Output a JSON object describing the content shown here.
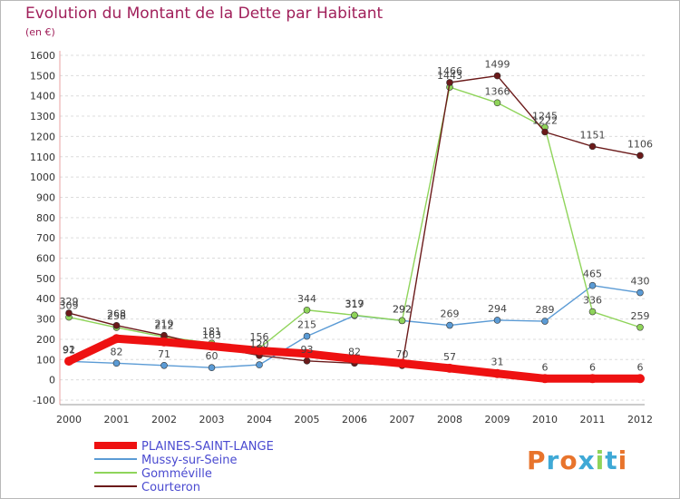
{
  "chart_data": {
    "type": "line",
    "title": "Evolution du Montant de la Dette par Habitant",
    "subtitle": "(en €)",
    "xlabel": "",
    "ylabel": "",
    "ylim": [
      -100,
      1600
    ],
    "yticks": [
      -100,
      0,
      100,
      200,
      300,
      400,
      500,
      600,
      700,
      800,
      900,
      1000,
      1100,
      1200,
      1300,
      1400,
      1500,
      1600
    ],
    "x": [
      "2000",
      "2001",
      "2002",
      "2003",
      "2004",
      "2005",
      "2006",
      "2007",
      "2008",
      "2009",
      "2010",
      "2011",
      "2012"
    ],
    "grid": "horizontal",
    "legend_placement": "bottom-left",
    "series": [
      {
        "name": "PLAINES-SAINT-LANGE",
        "color": "#ee1111",
        "values": [
          92,
          203,
          187,
          166,
          144,
          129,
          103,
          81,
          57,
          31,
          6,
          6,
          6
        ],
        "labels": [
          "92",
          "",
          "",
          "",
          "",
          "",
          "",
          "",
          "57",
          "31",
          "6",
          "6",
          "6"
        ]
      },
      {
        "name": "Mussy-sur-Seine",
        "color": "#5b9bd5",
        "values": [
          91,
          82,
          71,
          60,
          74,
          215,
          317,
          292,
          269,
          294,
          289,
          465,
          430
        ],
        "labels": [
          "91",
          "82",
          "71",
          "60",
          "",
          "215",
          "317",
          "292",
          "269",
          "294",
          "289",
          "465",
          "430"
        ]
      },
      {
        "name": "Gomméville",
        "color": "#8fd45a",
        "values": [
          309,
          258,
          212,
          181,
          156,
          344,
          319,
          292,
          1443,
          1366,
          1245,
          336,
          259
        ],
        "labels": [
          "309",
          "258",
          "212",
          "181",
          "156",
          "344",
          "319",
          "292",
          "1443",
          "1366",
          "1245",
          "336",
          "259"
        ]
      },
      {
        "name": "Courteron",
        "color": "#6b1a1a",
        "values": [
          329,
          268,
          219,
          163,
          120,
          93,
          82,
          70,
          1466,
          1499,
          1222,
          1151,
          1106
        ],
        "labels": [
          "329",
          "268",
          "219",
          "163",
          "120",
          "93",
          "82",
          "70",
          "1466",
          "1499",
          "1222",
          "1151",
          "1106"
        ]
      }
    ]
  },
  "legend_items": [
    "PLAINES-SAINT-LANGE",
    "Mussy-sur-Seine",
    "Gomméville",
    "Courteron"
  ],
  "logo": {
    "letters": [
      "P",
      "r",
      "o",
      "x",
      "i",
      "t",
      "i"
    ],
    "colors": [
      "#e8742c",
      "#3fa9d6",
      "#e8742c",
      "#3fa9d6",
      "#8fd45a",
      "#3fa9d6",
      "#e8742c"
    ]
  }
}
